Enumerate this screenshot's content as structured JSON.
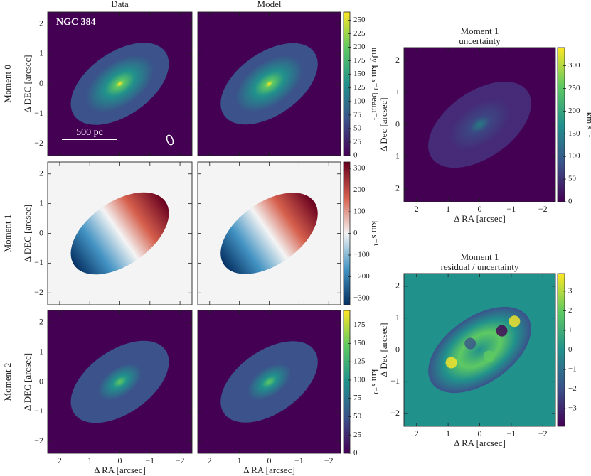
{
  "chart_data": {
    "type": "image-grid",
    "xlim": [
      2.4,
      -2.4
    ],
    "ylim": [
      -2.4,
      2.4
    ],
    "xticks": [
      2,
      1,
      0,
      {
        "value": -1,
        "label": "−1"
      },
      {
        "value": -2,
        "label": "−2"
      }
    ],
    "yticks": [
      {
        "value": -2,
        "label": "−2"
      },
      {
        "value": -1,
        "label": "−1"
      },
      0,
      1,
      2
    ],
    "annotations": [
      "NGC 384",
      "500 pc"
    ],
    "panels": [
      {
        "title": "Data",
        "row_label": "Moment 0",
        "ylabel": "Δ DEC [arcsec]"
      },
      {
        "title": "Model",
        "colorbar": {
          "label": "mJy km s⁻¹ beam⁻¹",
          "lim": [
            0,
            265
          ],
          "ticks": [
            0,
            25,
            50,
            75,
            100,
            125,
            150,
            175,
            200,
            225,
            250
          ],
          "colors": [
            "#440154",
            "#3b528b",
            "#21918c",
            "#5ec962",
            "#fde725"
          ]
        }
      },
      {
        "row_label": "Moment 1",
        "ylabel": "Δ DEC [arcsec]"
      },
      {
        "colorbar": {
          "label": "km s⁻¹",
          "lim": [
            -330,
            330
          ],
          "ticks": [
            {
              "value": -300,
              "label": "−300"
            },
            {
              "value": -200,
              "label": "−200"
            },
            {
              "value": -100,
              "label": "−100"
            },
            0,
            100,
            200,
            300
          ],
          "colors": [
            "#053061",
            "#4393c3",
            "#f4f4f4",
            "#d6604d",
            "#67001f"
          ]
        }
      },
      {
        "row_label": "Moment 2",
        "ylabel": "Δ DEC [arcsec]",
        "xlabel": "Δ RA [arcsec]"
      },
      {
        "xlabel": "Δ RA [arcsec]",
        "colorbar": {
          "label": "km s⁻¹",
          "lim": [
            0,
            195
          ],
          "ticks": [
            0,
            25,
            50,
            75,
            100,
            125,
            150,
            175
          ],
          "colors": [
            "#440154",
            "#3b528b",
            "#21918c",
            "#5ec962",
            "#fde725"
          ]
        }
      },
      {
        "title": "Moment 1",
        "subtitle": "uncertainty",
        "ylabel": "Δ Dec [arcsec]",
        "xlabel": "Δ RA [arcsec]",
        "colorbar": {
          "label": "km s⁻¹",
          "lim": [
            0,
            340
          ],
          "ticks": [
            0,
            50,
            100,
            150,
            200,
            250,
            300
          ],
          "colors": [
            "#440154",
            "#3b528b",
            "#21918c",
            "#5ec962",
            "#fde725"
          ]
        }
      },
      {
        "title": "Moment 1",
        "subtitle": "residual / uncertainty",
        "ylabel": "Δ Dec [arcsec]",
        "xlabel": "Δ RA [arcsec]",
        "colorbar": {
          "label": "",
          "lim": [
            -3.9,
            3.9
          ],
          "ticks": [
            {
              "value": -3,
              "label": "−3"
            },
            {
              "value": -2,
              "label": "−2"
            },
            {
              "value": -1,
              "label": "−1"
            },
            0,
            1,
            2,
            3
          ],
          "colors": [
            "#440154",
            "#3b528b",
            "#21918c",
            "#5ec962",
            "#fde725"
          ]
        }
      }
    ]
  }
}
